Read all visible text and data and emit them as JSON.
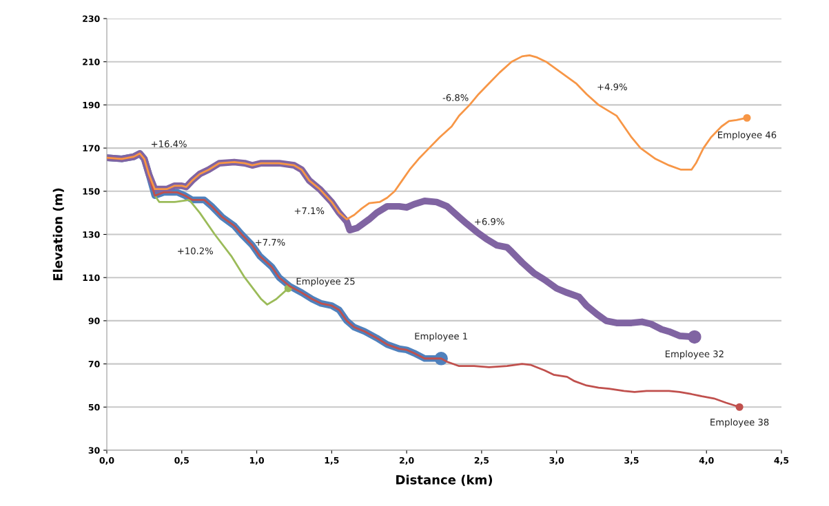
{
  "chart_data": {
    "type": "line",
    "xlabel": "Distance (km)",
    "ylabel": "Elevation (m)",
    "xlim": [
      0,
      4.5
    ],
    "ylim": [
      30,
      230
    ],
    "xticks": [
      {
        "value": 0,
        "label": "0,0"
      },
      {
        "value": 0.5,
        "label": "0,5"
      },
      {
        "value": 1,
        "label": "1,0"
      },
      {
        "value": 1.5,
        "label": "1,5"
      },
      {
        "value": 2,
        "label": "2,0"
      },
      {
        "value": 2.5,
        "label": "2,5"
      },
      {
        "value": 3,
        "label": "3,0"
      },
      {
        "value": 3.5,
        "label": "3,5"
      },
      {
        "value": 4,
        "label": "4,0"
      },
      {
        "value": 4.5,
        "label": "4,5"
      }
    ],
    "yticks": [
      30,
      50,
      70,
      90,
      110,
      130,
      150,
      170,
      190,
      210,
      230
    ],
    "grid": "y",
    "legend": false,
    "line_style": "solid",
    "series": [
      {
        "name": "Employee 1",
        "color": "#4f81bd",
        "x": [
          0,
          0.1,
          0.18,
          0.22,
          0.25,
          0.28,
          0.32,
          0.38,
          0.47,
          0.52,
          0.57,
          0.65,
          0.7,
          0.77,
          0.85,
          0.9,
          0.97,
          1.02,
          1.1,
          1.15,
          1.22,
          1.3,
          1.37,
          1.43,
          1.5,
          1.55,
          1.6,
          1.65,
          1.72,
          1.8,
          1.87,
          1.95,
          2.0,
          2.05,
          2.12,
          2.23
        ],
        "values": [
          165.5,
          165,
          166,
          167.5,
          165,
          158,
          148,
          149.5,
          149.5,
          148,
          146,
          146,
          143,
          138,
          134,
          130,
          125,
          120,
          115,
          110,
          106,
          103,
          100,
          98,
          97,
          95,
          90,
          87,
          85,
          82,
          79,
          77,
          76.5,
          75,
          72.5,
          72.5
        ]
      },
      {
        "name": "Employee 32",
        "color": "#8064a2",
        "x": [
          0,
          0.1,
          0.18,
          0.22,
          0.25,
          0.28,
          0.32,
          0.4,
          0.45,
          0.5,
          0.53,
          0.57,
          0.62,
          0.68,
          0.75,
          0.85,
          0.92,
          0.97,
          1.03,
          1.15,
          1.25,
          1.3,
          1.35,
          1.42,
          1.5,
          1.55,
          1.6,
          1.62,
          1.67,
          1.75,
          1.8,
          1.87,
          1.95,
          2.0,
          2.05,
          2.12,
          2.2,
          2.27,
          2.35,
          2.4,
          2.47,
          2.53,
          2.6,
          2.67,
          2.7,
          2.77,
          2.85,
          2.92,
          3.0,
          3.07,
          3.15,
          3.2,
          3.27,
          3.33,
          3.4,
          3.5,
          3.57,
          3.63,
          3.7,
          3.75,
          3.82,
          3.92
        ],
        "values": [
          165.5,
          165,
          166,
          167.5,
          165,
          158,
          151,
          151,
          152.5,
          152.5,
          152,
          155,
          158,
          160,
          163,
          163.5,
          163,
          162,
          163,
          163,
          162,
          160,
          155,
          151,
          145,
          140,
          136,
          132,
          133,
          137,
          140,
          143,
          143,
          142.5,
          144,
          145.5,
          145,
          143,
          138,
          135,
          131,
          128,
          125,
          124,
          122,
          117,
          112,
          109,
          105,
          103,
          101,
          97,
          93,
          90,
          89,
          89,
          89.5,
          88.5,
          86,
          85,
          83,
          82.5
        ]
      },
      {
        "name": "Employee 25",
        "color": "#9bbb59",
        "x": [
          0.32,
          0.35,
          0.45,
          0.55,
          0.62,
          0.72,
          0.83,
          0.92,
          1.03,
          1.07,
          1.13,
          1.21
        ],
        "values": [
          148,
          145,
          145,
          146,
          140,
          130,
          120,
          110,
          100,
          97.5,
          100,
          105
        ]
      },
      {
        "name": "Employee 38",
        "color": "#c0504d",
        "x": [
          0,
          0.1,
          0.18,
          0.22,
          0.25,
          0.28,
          0.32,
          0.38,
          0.47,
          0.52,
          0.57,
          0.65,
          0.7,
          0.77,
          0.85,
          0.9,
          0.97,
          1.02,
          1.1,
          1.15,
          1.22,
          1.3,
          1.37,
          1.43,
          1.5,
          1.55,
          1.6,
          1.65,
          1.72,
          1.8,
          1.87,
          1.95,
          2.0,
          2.05,
          2.12,
          2.23,
          2.27,
          2.35,
          2.45,
          2.55,
          2.67,
          2.77,
          2.83,
          2.92,
          2.98,
          3.07,
          3.12,
          3.2,
          3.28,
          3.35,
          3.45,
          3.52,
          3.6,
          3.75,
          3.82,
          3.9,
          3.97,
          4.05,
          4.13,
          4.22
        ],
        "values": [
          165.5,
          165,
          166,
          167.5,
          165,
          158,
          148,
          149.5,
          149.5,
          148,
          146,
          146,
          143,
          138,
          134,
          130,
          125,
          120,
          115,
          110,
          106,
          103,
          100,
          98,
          97,
          95,
          90,
          87,
          85,
          82,
          79,
          77,
          76.5,
          75,
          72.5,
          72.5,
          71,
          69,
          69,
          68.5,
          69,
          70,
          69.5,
          67,
          65,
          64,
          62,
          60,
          59,
          58.5,
          57.5,
          57,
          57.5,
          57.5,
          57,
          56,
          55,
          54,
          52,
          50
        ]
      },
      {
        "name": "Employee 46",
        "color": "#f79646",
        "x": [
          0,
          0.1,
          0.18,
          0.22,
          0.25,
          0.28,
          0.32,
          0.4,
          0.45,
          0.5,
          0.53,
          0.57,
          0.62,
          0.68,
          0.75,
          0.85,
          0.92,
          0.97,
          1.03,
          1.15,
          1.25,
          1.3,
          1.35,
          1.42,
          1.5,
          1.55,
          1.6,
          1.65,
          1.7,
          1.75,
          1.82,
          1.87,
          1.92,
          1.97,
          2.02,
          2.08,
          2.15,
          2.22,
          2.3,
          2.35,
          2.42,
          2.48,
          2.55,
          2.62,
          2.7,
          2.77,
          2.82,
          2.87,
          2.93,
          3.03,
          3.13,
          3.2,
          3.28,
          3.4,
          3.45,
          3.5,
          3.56,
          3.66,
          3.75,
          3.83,
          3.9,
          3.93,
          3.98,
          4.03,
          4.1,
          4.15,
          4.2,
          4.27
        ],
        "values": [
          165.5,
          165,
          166,
          167.5,
          165,
          158,
          151,
          151,
          152.5,
          152.5,
          152,
          155,
          158,
          160,
          163,
          163.5,
          163,
          162,
          163,
          163,
          162,
          160,
          155,
          151,
          145,
          140,
          137,
          139,
          142,
          144.5,
          145,
          147,
          150,
          155,
          160,
          165,
          170,
          175,
          180,
          185,
          190,
          195,
          200,
          205,
          210,
          212.5,
          213,
          212,
          210,
          205,
          200,
          195,
          190,
          185,
          180,
          175,
          170,
          165,
          162,
          160,
          160,
          163,
          170,
          175,
          180,
          182.5,
          183,
          184
        ]
      }
    ],
    "annotations": [
      "+16.4%",
      "+7.1%",
      "+10.2%",
      "+7.7%",
      "+6.9%",
      "-6.8%",
      "+4.9%"
    ]
  }
}
